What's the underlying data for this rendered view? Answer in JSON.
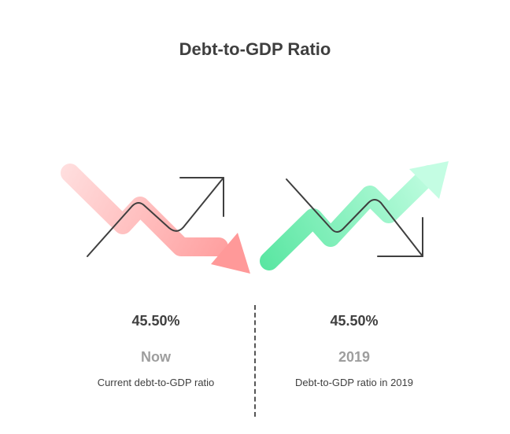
{
  "title": "Debt-to-GDP Ratio",
  "current": {
    "value": "45.50%",
    "period": "Now",
    "description": "Current debt-to-GDP ratio"
  },
  "previous": {
    "value": "45.50%",
    "period": "2019",
    "description": "Debt-to-GDP ratio in 2019"
  },
  "colors": {
    "down_arrow": "#ff9d9d",
    "up_arrow": "#6ef0b0",
    "line": "#3f3f3f",
    "label": "#9e9e9e"
  },
  "icons": [
    "trend-down-arrow-icon",
    "trend-up-line-icon",
    "trend-up-arrow-icon",
    "trend-down-line-icon"
  ]
}
